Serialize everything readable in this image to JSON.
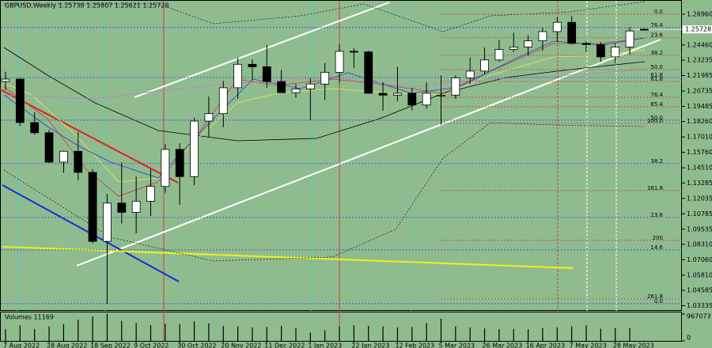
{
  "chart_data": {
    "type": "candlestick",
    "title": "GBPUSD,Weekly  1.25738 1.25807 1.25621 1.25728",
    "categories": [
      "7 Aug 2022",
      null,
      null,
      "28 Aug 2022",
      null,
      null,
      "18 Sep 2022",
      null,
      null,
      "9 Oct 2022",
      null,
      null,
      "30 Oct 2022",
      null,
      null,
      "20 Nov 2022",
      null,
      null,
      "11 Dec 2022",
      null,
      null,
      "1 Jan 2023",
      null,
      null,
      "22 Jan 2023",
      null,
      null,
      "12 Feb 2023",
      null,
      null,
      "5 Mar 2023",
      null,
      null,
      "26 Mar 2023",
      null,
      null,
      "16 Apr 2023",
      null,
      null,
      "7 May 2023",
      null,
      null,
      "28 May 2023",
      null,
      null
    ],
    "open": [
      1.2151,
      1.217,
      1.1818,
      1.1735,
      1.1497,
      1.1585,
      1.1414,
      1.0855,
      1.1165,
      1.109,
      1.118,
      1.13,
      1.16,
      1.138,
      1.183,
      1.189,
      1.21,
      1.229,
      1.227,
      1.215,
      1.206,
      1.209,
      1.213,
      1.2225,
      1.2395,
      1.239,
      1.2055,
      1.204,
      1.2055,
      1.196,
      1.2035,
      1.204,
      1.218,
      1.2235,
      1.2325,
      1.241,
      1.243,
      1.248,
      1.2555,
      1.263,
      1.246,
      1.245,
      1.235,
      1.243,
      1.25738
    ],
    "high": [
      1.223,
      1.218,
      1.19,
      1.176,
      1.159,
      1.174,
      1.144,
      1.124,
      1.1495,
      1.138,
      1.144,
      1.1645,
      1.165,
      1.1855,
      1.203,
      1.2155,
      1.2345,
      1.233,
      1.2445,
      1.2245,
      1.213,
      1.2175,
      1.23,
      1.245,
      1.242,
      1.24,
      1.2145,
      1.227,
      1.21,
      1.2145,
      1.22,
      1.22,
      1.2345,
      1.2425,
      1.2485,
      1.2545,
      1.2525,
      1.2585,
      1.267,
      1.268,
      1.248,
      1.247,
      1.246,
      1.259,
      1.25807
    ],
    "low": [
      1.208,
      1.179,
      1.172,
      1.149,
      1.141,
      1.135,
      1.084,
      1.035,
      1.1,
      1.092,
      1.106,
      1.125,
      1.115,
      1.131,
      1.17,
      1.178,
      1.201,
      1.216,
      1.21,
      1.206,
      1.202,
      1.184,
      1.2,
      1.214,
      1.226,
      1.205,
      1.1915,
      1.199,
      1.1915,
      1.193,
      1.18,
      1.201,
      1.213,
      1.221,
      1.231,
      1.239,
      1.236,
      1.24,
      1.247,
      1.245,
      1.239,
      1.231,
      1.23,
      1.237,
      1.25621
    ],
    "close": [
      1.217,
      1.1818,
      1.1735,
      1.1497,
      1.1585,
      1.1414,
      1.0855,
      1.1165,
      1.109,
      1.118,
      1.13,
      1.16,
      1.138,
      1.183,
      1.189,
      1.21,
      1.229,
      1.227,
      1.215,
      1.206,
      1.209,
      1.213,
      1.2225,
      1.2395,
      1.239,
      1.2055,
      1.204,
      1.2055,
      1.196,
      1.2055,
      1.204,
      1.218,
      1.2235,
      1.2325,
      1.241,
      1.243,
      1.248,
      1.2555,
      1.263,
      1.246,
      1.245,
      1.235,
      1.243,
      1.256,
      1.25728
    ],
    "up_color": "#ffffff",
    "down_color": "#000000",
    "ylim": [
      1.0292,
      1.2811
    ],
    "yticks": [
      {
        "value": 1.2696,
        "label": "1.26960"
      },
      {
        "value": 1.2446,
        "label": "1.24460"
      },
      {
        "value": 1.23235,
        "label": "1.23235"
      },
      {
        "value": 1.21985,
        "label": "1.21985"
      },
      {
        "value": 1.20735,
        "label": "1.20735"
      },
      {
        "value": 1.19485,
        "label": "1.19485"
      },
      {
        "value": 1.1826,
        "label": "1.18260"
      },
      {
        "value": 1.1701,
        "label": "1.17010"
      },
      {
        "value": 1.1576,
        "label": "1.15760"
      },
      {
        "value": 1.1451,
        "label": "1.14510"
      },
      {
        "value": 1.13285,
        "label": "1.13285"
      },
      {
        "value": 1.12035,
        "label": "1.12035"
      },
      {
        "value": 1.10785,
        "label": "1.10785"
      },
      {
        "value": 1.09535,
        "label": "1.09535"
      },
      {
        "value": 1.0831,
        "label": "1.08310"
      },
      {
        "value": 1.0706,
        "label": "1.07060"
      },
      {
        "value": 1.0581,
        "label": "1.05810"
      },
      {
        "value": 1.04585,
        "label": "1.04585"
      },
      {
        "value": 1.03335,
        "label": "1.03335"
      }
    ],
    "last_price": {
      "value": 1.25728,
      "label": "1.25728"
    },
    "fib_levels": [
      {
        "label": "0.0",
        "value": 1.2696,
        "color": "#c83c3c"
      },
      {
        "label": "76.4",
        "value": 1.2588,
        "color": "#2850c8"
      },
      {
        "label": "23.6",
        "value": 1.2505,
        "color": "#c83c3c"
      },
      {
        "label": "38.2",
        "value": 1.2363,
        "color": "#c83c3c"
      },
      {
        "label": "50.0",
        "value": 1.2247,
        "color": "#c83c3c"
      },
      {
        "label": "61.8",
        "value": 1.2183,
        "color": "#2850c8"
      },
      {
        "label": "61.8",
        "value": 1.2151,
        "color": "#c83c3c"
      },
      {
        "label": "76.4",
        "value": 1.2023,
        "color": "#c83c3c"
      },
      {
        "label": "85.4",
        "value": 1.1946,
        "color": "#c83c3c"
      },
      {
        "label": "50.0",
        "value": 1.1837,
        "color": "#2850c8"
      },
      {
        "label": "100.0",
        "value": 1.1811,
        "color": "#c83c3c"
      },
      {
        "label": "38.2",
        "value": 1.1485,
        "color": "#2850c8"
      },
      {
        "label": "161.8",
        "value": 1.1267,
        "color": "#c83c3c"
      },
      {
        "label": "23.6",
        "value": 1.1049,
        "color": "#2850c8"
      },
      {
        "label": "200",
        "value": 1.0863,
        "color": "#c83c3c"
      },
      {
        "label": "14.6",
        "value": 1.0786,
        "color": "#2850c8"
      },
      {
        "label": "261.8",
        "value": 1.0388,
        "color": "#c83c3c"
      },
      {
        "label": "0.0",
        "value": 1.035,
        "color": "#2850c8"
      }
    ],
    "volume": {
      "label": "Volumes 11169",
      "color": "#000000",
      "values": [
        420000,
        560000,
        430000,
        520000,
        600000,
        760000,
        880000,
        980000,
        720000,
        640000,
        560000,
        620000,
        600000,
        700000,
        630000,
        540000,
        520000,
        480000,
        500000,
        540000,
        460000,
        300000,
        380000,
        520000,
        560000,
        540000,
        520000,
        480000,
        500000,
        640000,
        800000,
        520000,
        480000,
        450000,
        420000,
        430000,
        420000,
        460000,
        480000,
        520000,
        560000,
        440000,
        460000,
        470000,
        11169
      ],
      "ylim": [
        0,
        967073
      ],
      "yticks": [
        967073,
        0
      ]
    }
  }
}
